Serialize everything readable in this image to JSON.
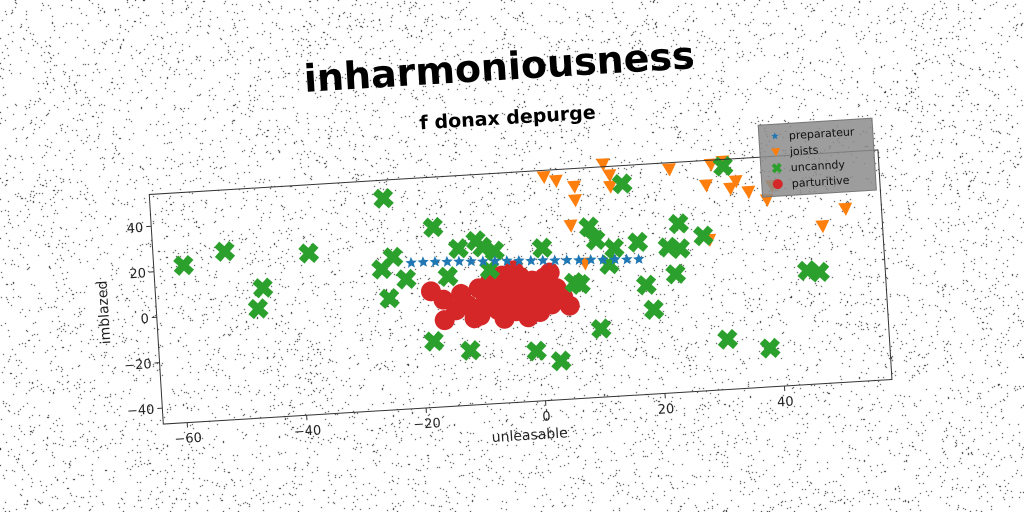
{
  "chart_data": {
    "type": "scatter",
    "title": "inharmoniousness",
    "subtitle": "f donax depurge",
    "xlabel": "unleasable",
    "ylabel": "imblazed",
    "xlim": [
      -64,
      58
    ],
    "ylim": [
      -47,
      54
    ],
    "xticks": [
      -60,
      -40,
      -20,
      0,
      20,
      40
    ],
    "yticks": [
      -40,
      -20,
      0,
      20,
      40
    ],
    "grid": false,
    "legend_position": "top-right",
    "series": [
      {
        "name": "preparateur",
        "marker": "star",
        "color": "#1f77b4",
        "points": [
          [
            -21,
            17
          ],
          [
            -19,
            17
          ],
          [
            -17,
            16.8
          ],
          [
            -15,
            16.5
          ],
          [
            -13,
            16.3
          ],
          [
            -11,
            16
          ],
          [
            -9,
            15.7
          ],
          [
            -7,
            15.5
          ],
          [
            -5,
            15.3
          ],
          [
            -3,
            15
          ],
          [
            -1,
            14.7
          ],
          [
            1,
            14.5
          ],
          [
            3,
            14.2
          ],
          [
            5,
            14
          ],
          [
            7,
            13.7
          ],
          [
            9,
            13.5
          ],
          [
            11,
            13.2
          ],
          [
            13,
            13
          ],
          [
            15,
            12.7
          ],
          [
            17,
            12.5
          ]
        ]
      },
      {
        "name": "joists",
        "marker": "triangle-down",
        "color": "#ff7f0e",
        "points": [
          [
            2,
            51
          ],
          [
            4,
            49
          ],
          [
            7,
            46
          ],
          [
            12,
            55
          ],
          [
            13,
            50
          ],
          [
            13,
            45
          ],
          [
            7,
            40
          ],
          [
            23,
            51
          ],
          [
            30,
            52
          ],
          [
            32,
            53
          ],
          [
            29,
            43
          ],
          [
            34,
            44
          ],
          [
            33,
            41
          ],
          [
            36,
            39
          ],
          [
            39,
            35
          ],
          [
            40,
            41
          ],
          [
            48,
            22
          ],
          [
            52,
            29
          ],
          [
            6,
            29
          ],
          [
            8,
            12
          ],
          [
            29,
            19
          ]
        ]
      },
      {
        "name": "uncanndy",
        "marker": "x",
        "color": "#2ca02c",
        "points": [
          [
            -59,
            22
          ],
          [
            -52,
            27
          ],
          [
            -46,
            10
          ],
          [
            -47,
            1
          ],
          [
            -38,
            24
          ],
          [
            -25,
            46
          ],
          [
            -24,
            20
          ],
          [
            -26,
            15
          ],
          [
            -25,
            2
          ],
          [
            -22,
            10
          ],
          [
            -17,
            32
          ],
          [
            -13,
            22
          ],
          [
            -15,
            10
          ],
          [
            -10,
            25
          ],
          [
            -9,
            22
          ],
          [
            -7,
            20
          ],
          [
            -8,
            12
          ],
          [
            -18,
            -18
          ],
          [
            -12,
            -23
          ],
          [
            -1,
            -25
          ],
          [
            3,
            -30
          ],
          [
            1,
            20
          ],
          [
            9,
            28
          ],
          [
            10,
            22
          ],
          [
            13,
            18
          ],
          [
            6,
            4
          ],
          [
            7,
            3
          ],
          [
            10,
            -17
          ],
          [
            15,
            46
          ],
          [
            17,
            20
          ],
          [
            12,
            11
          ],
          [
            18,
            1
          ],
          [
            19,
            -10
          ],
          [
            22,
            17
          ],
          [
            24,
            16
          ],
          [
            24,
            27
          ],
          [
            23,
            5
          ],
          [
            28,
            21
          ],
          [
            31,
            -25
          ],
          [
            38,
            -30
          ],
          [
            32,
            51
          ],
          [
            45,
            3
          ],
          [
            47,
            2
          ]
        ]
      },
      {
        "name": "parturitive",
        "marker": "circle",
        "color": "#d62728",
        "points": [
          [
            -18,
            4
          ],
          [
            -16,
            0
          ],
          [
            -14,
            -5
          ],
          [
            -13,
            2
          ],
          [
            -12,
            -3
          ],
          [
            -10,
            4
          ],
          [
            -10,
            -8
          ],
          [
            -9,
            -2
          ],
          [
            -8,
            7
          ],
          [
            -7,
            2
          ],
          [
            -7,
            -6
          ],
          [
            -6,
            9
          ],
          [
            -5,
            -1
          ],
          [
            -5,
            4
          ],
          [
            -4,
            -7
          ],
          [
            -3,
            8
          ],
          [
            -3,
            1
          ],
          [
            -2,
            -4
          ],
          [
            -1,
            6
          ],
          [
            -1,
            -1
          ],
          [
            0,
            3
          ],
          [
            0,
            -8
          ],
          [
            1,
            0
          ],
          [
            1,
            7
          ],
          [
            2,
            -5
          ],
          [
            3,
            2
          ],
          [
            4,
            -2
          ],
          [
            -6,
            -10
          ],
          [
            -11,
            -9
          ],
          [
            -16,
            -9
          ],
          [
            -2,
            -10
          ],
          [
            2,
            9
          ],
          [
            -4,
            11
          ],
          [
            5,
            -6
          ]
        ]
      }
    ]
  }
}
